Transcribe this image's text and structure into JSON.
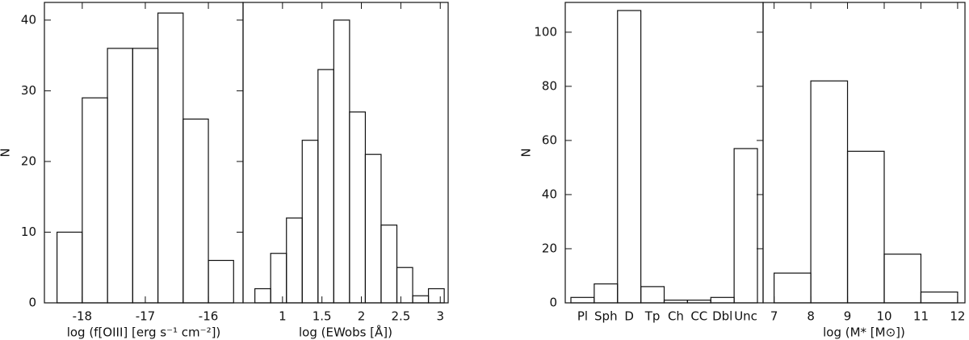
{
  "chart_data": [
    {
      "type": "histogram",
      "xlabel": "log (f[OIII] [erg s⁻¹ cm⁻²])",
      "ylabel": "N",
      "bins": [
        -18.4,
        -18.0,
        -17.6,
        -17.2,
        -16.8,
        -16.4,
        -16.0,
        -15.6
      ],
      "values": [
        10,
        29,
        36,
        36,
        41,
        26,
        6
      ],
      "xlim": [
        -18.6,
        -15.45
      ],
      "xticks": [
        -18,
        -17,
        -16
      ],
      "ylim": [
        0,
        42.5
      ],
      "yticks": [
        0,
        10,
        20,
        30,
        40
      ]
    },
    {
      "type": "histogram",
      "xlabel": "log (EWobs [Å])",
      "bins": [
        0.65,
        0.85,
        1.05,
        1.25,
        1.45,
        1.65,
        1.85,
        2.05,
        2.25,
        2.45,
        2.65,
        2.85,
        3.05
      ],
      "values": [
        2,
        7,
        12,
        23,
        33,
        40,
        27,
        21,
        11,
        5,
        1,
        2
      ],
      "xlim": [
        0.5,
        3.1
      ],
      "xticks": [
        1,
        1.5,
        2,
        2.5,
        3
      ],
      "ylim": [
        0,
        42.5
      ]
    },
    {
      "type": "bar",
      "ylabel": "N",
      "categories": [
        "Pl",
        "Sph",
        "D",
        "Tp",
        "Ch",
        "CC",
        "Dbl",
        "Unc"
      ],
      "values": [
        2,
        7,
        108,
        6,
        1,
        1,
        2,
        57
      ],
      "ylim": [
        0,
        111
      ],
      "yticks": [
        0,
        20,
        40,
        60,
        80,
        100
      ]
    },
    {
      "type": "histogram",
      "xlabel": "log (M* [M⊙])",
      "bins": [
        7,
        8,
        9,
        10,
        11,
        12
      ],
      "values": [
        11,
        82,
        56,
        18,
        4
      ],
      "xlim": [
        6.7,
        12.2
      ],
      "xticks": [
        7,
        8,
        9,
        10,
        11,
        12
      ],
      "ylim": [
        0,
        111
      ]
    }
  ]
}
